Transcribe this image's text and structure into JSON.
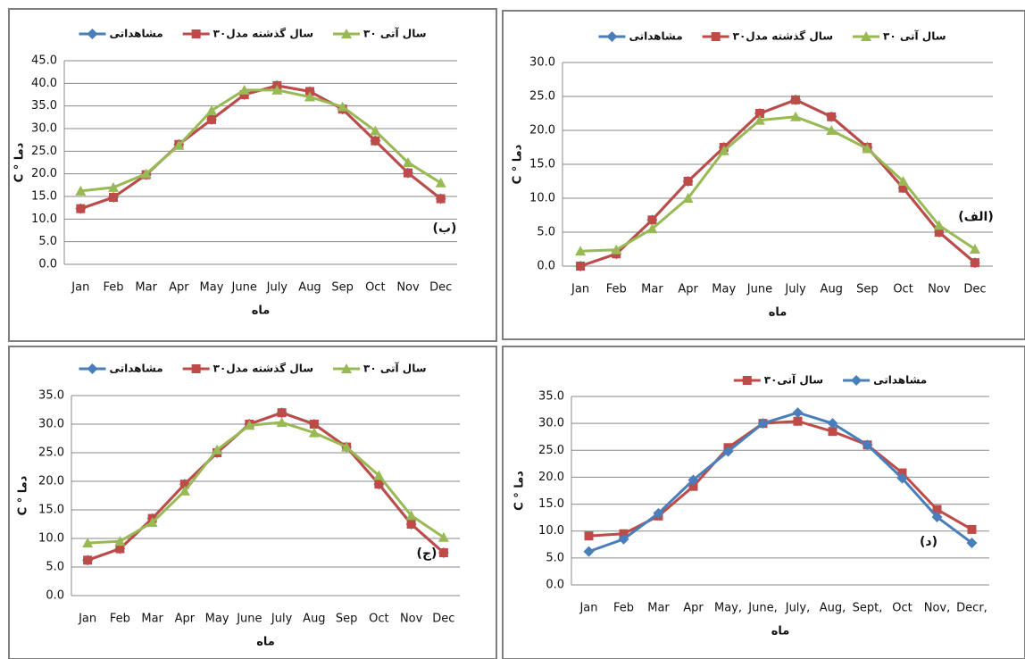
{
  "chart_data": [
    {
      "type": "line",
      "xlabel": "ماه",
      "ylabel": "C ° دما",
      "annotation": "(ب)",
      "grid": true,
      "categories": [
        "Jan",
        "Feb",
        "Mar",
        "Apr",
        "May",
        "June",
        "July",
        "Aug",
        "Sep",
        "Oct",
        "Nov",
        "Dec"
      ],
      "ylim": [
        0,
        45
      ],
      "yticks": [
        {
          "value": 0,
          "label": "0.0"
        },
        {
          "value": 5,
          "label": "5.0"
        },
        {
          "value": 10,
          "label": "10.0"
        },
        {
          "value": 15,
          "label": "15.0"
        },
        {
          "value": 20,
          "label": "20.0"
        },
        {
          "value": 25,
          "label": "25.0"
        },
        {
          "value": 30,
          "label": "30.0"
        },
        {
          "value": 35,
          "label": "35.0"
        },
        {
          "value": 40,
          "label": "40.0"
        },
        {
          "value": 45,
          "label": "45.0"
        }
      ],
      "series": [
        {
          "name": "مشاهداتی",
          "color": "#4a7ebb",
          "marker": "diamond",
          "values": [
            12.3,
            14.8,
            19.8,
            26.5,
            32,
            37.5,
            39.5,
            38.2,
            34.3,
            27.3,
            20.2,
            14.5
          ]
        },
        {
          "name": "۳۰سال گذشته مدل",
          "color": "#be4b48",
          "marker": "square",
          "values": [
            12.3,
            14.8,
            19.8,
            26.5,
            32,
            37.5,
            39.5,
            38.2,
            34.3,
            27.3,
            20.2,
            14.5
          ]
        },
        {
          "name": "۳۰ سال آتی",
          "color": "#98b954",
          "marker": "triangle",
          "values": [
            16.2,
            17,
            20,
            26.3,
            34,
            38.5,
            38.5,
            37,
            34.8,
            29.5,
            22.5,
            18
          ]
        }
      ]
    },
    {
      "type": "line",
      "xlabel": "ماه",
      "ylabel": "C ° دما",
      "annotation": "(الف)",
      "grid": true,
      "categories": [
        "Jan",
        "Feb",
        "Mar",
        "Apr",
        "May",
        "June",
        "July",
        "Aug",
        "Sep",
        "Oct",
        "Nov",
        "Dec"
      ],
      "ylim": [
        0,
        30
      ],
      "yticks": [
        {
          "value": 0,
          "label": "0.0"
        },
        {
          "value": 5,
          "label": "5.0"
        },
        {
          "value": 10,
          "label": "10.0"
        },
        {
          "value": 15,
          "label": "15.0"
        },
        {
          "value": 20,
          "label": "20.0"
        },
        {
          "value": 25,
          "label": "25.0"
        },
        {
          "value": 30,
          "label": "30.0"
        }
      ],
      "series": [
        {
          "name": "مشاهداتی",
          "color": "#4a7ebb",
          "marker": "diamond",
          "values": [
            0,
            1.8,
            6.8,
            12.5,
            17.5,
            22.5,
            24.5,
            22,
            17.5,
            11.5,
            5,
            0.5
          ]
        },
        {
          "name": "۳۰سال گذشته مدل",
          "color": "#be4b48",
          "marker": "square",
          "values": [
            0,
            1.8,
            6.8,
            12.5,
            17.5,
            22.5,
            24.5,
            22,
            17.5,
            11.5,
            5,
            0.5
          ]
        },
        {
          "name": "۳۰ سال آتی",
          "color": "#98b954",
          "marker": "triangle",
          "values": [
            2.2,
            2.4,
            5.5,
            10,
            17,
            21.5,
            22,
            20,
            17.3,
            12.5,
            6,
            2.5
          ]
        }
      ]
    },
    {
      "type": "line",
      "xlabel": "ماه",
      "ylabel": "C ° دما",
      "annotation": "(ج)",
      "grid": true,
      "categories": [
        "Jan",
        "Feb",
        "Mar",
        "Apr",
        "May",
        "June",
        "July",
        "Aug",
        "Sep",
        "Oct",
        "Nov",
        "Dec"
      ],
      "ylim": [
        0,
        35
      ],
      "yticks": [
        {
          "value": 0,
          "label": "0.0"
        },
        {
          "value": 5,
          "label": "5.0"
        },
        {
          "value": 10,
          "label": "10.0"
        },
        {
          "value": 15,
          "label": "15.0"
        },
        {
          "value": 20,
          "label": "20.0"
        },
        {
          "value": 25,
          "label": "25.0"
        },
        {
          "value": 30,
          "label": "30.0"
        },
        {
          "value": 35,
          "label": "35.0"
        }
      ],
      "series": [
        {
          "name": "مشاهداتی",
          "color": "#4a7ebb",
          "marker": "diamond",
          "values": [
            6.2,
            8.2,
            13.5,
            19.5,
            25,
            30,
            32,
            30,
            26,
            19.5,
            12.5,
            7.5
          ]
        },
        {
          "name": "۳۰سال گذشته مدل",
          "color": "#be4b48",
          "marker": "square",
          "values": [
            6.2,
            8.2,
            13.5,
            19.5,
            25,
            30,
            32,
            30,
            26,
            19.5,
            12.5,
            7.5
          ]
        },
        {
          "name": "۳۰ سال آتی",
          "color": "#98b954",
          "marker": "triangle",
          "values": [
            9.2,
            9.5,
            12.8,
            18.3,
            25.5,
            29.8,
            30.3,
            28.5,
            26,
            21,
            14,
            10.2
          ]
        }
      ]
    },
    {
      "type": "line",
      "xlabel": "ماه",
      "ylabel": "C ° دما",
      "annotation": "(د)",
      "grid": true,
      "categories": [
        "Jan",
        "Feb",
        "Mar",
        "Apr",
        "May,",
        "June,",
        "July,",
        "Aug,",
        "Sept,",
        "Oct",
        "Nov,",
        "Decr,"
      ],
      "ylim": [
        0,
        35
      ],
      "yticks": [
        {
          "value": 0,
          "label": "0.0"
        },
        {
          "value": 5,
          "label": "5.0"
        },
        {
          "value": 10,
          "label": "10.0"
        },
        {
          "value": 15,
          "label": "15.0"
        },
        {
          "value": 20,
          "label": "20.0"
        },
        {
          "value": 25,
          "label": "25.0"
        },
        {
          "value": 30,
          "label": "30.0"
        },
        {
          "value": 35,
          "label": "35.0"
        }
      ],
      "series": [
        {
          "name": "۳۰سال آتی",
          "color": "#be4b48",
          "marker": "square",
          "values": [
            9.1,
            9.5,
            12.8,
            18.3,
            25.5,
            30,
            30.4,
            28.5,
            26,
            20.8,
            14,
            10.3
          ]
        },
        {
          "name": "مشاهداتی",
          "color": "#4a7ebb",
          "marker": "diamond",
          "values": [
            6.2,
            8.5,
            13.3,
            19.5,
            24.8,
            30,
            32,
            30,
            26,
            19.8,
            12.6,
            7.8
          ]
        }
      ]
    }
  ]
}
